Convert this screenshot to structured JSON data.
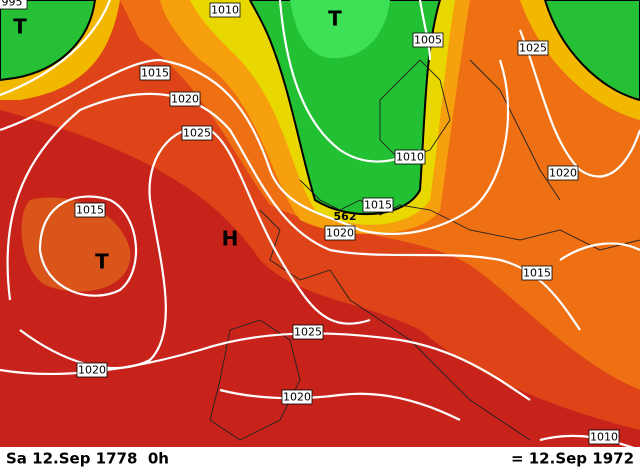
{
  "isobar_labels": [
    995,
    1010,
    1005,
    1025,
    1015,
    1020,
    1025,
    1010,
    1020,
    1015,
    1015,
    1020,
    1015,
    1025,
    1020,
    1020,
    1010
  ],
  "height_label": 562,
  "pressure_centers": [
    "T",
    "T",
    "T",
    "H"
  ],
  "footer": {
    "left": "Sa 12.Sep 1778  0h",
    "right": "= 12.Sep 1972"
  }
}
